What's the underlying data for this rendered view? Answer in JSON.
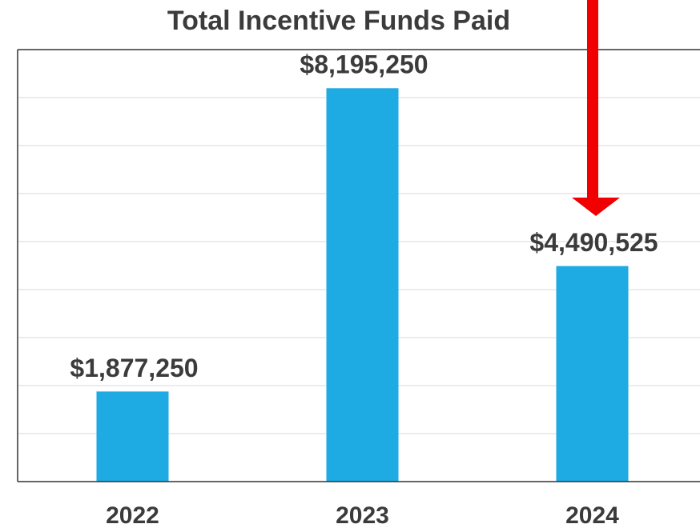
{
  "chart_data": {
    "type": "bar",
    "title": "Total Incentive Funds Paid",
    "categories": [
      "2022",
      "2023",
      "2024"
    ],
    "values": [
      1877250,
      8195250,
      4490525
    ],
    "value_labels": [
      "$1,877,250",
      "$8,195,250",
      "$4,490,525"
    ],
    "color": "#1eaae2",
    "ylim": [
      0,
      9000000
    ],
    "yticks": [
      0,
      1000000,
      2000000,
      3000000,
      4000000,
      5000000,
      6000000,
      7000000,
      8000000,
      9000000
    ],
    "grid": true
  }
}
